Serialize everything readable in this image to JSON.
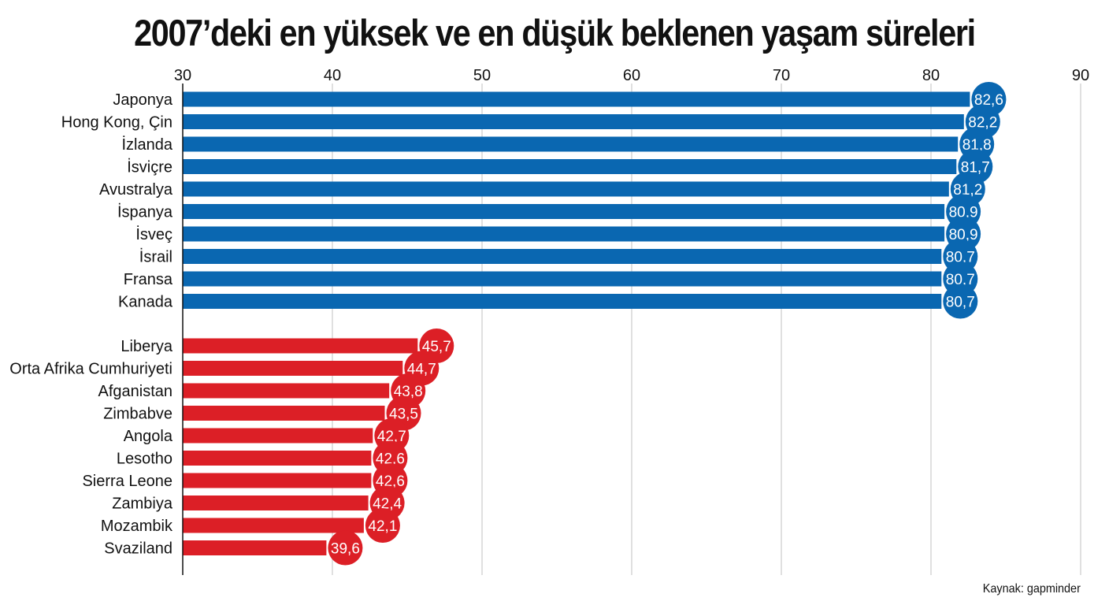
{
  "title": "2007’deki en yüksek ve en düşük beklenen yaşam süreleri",
  "source": "Kaynak: gapminder",
  "colors": {
    "high": "#0a67b1",
    "low": "#dc1f26",
    "grid": "#cccccc",
    "axis": "#111111"
  },
  "chart_data": {
    "type": "bar",
    "orientation": "horizontal",
    "xlim": [
      30,
      90
    ],
    "xticks": [
      "30",
      "40",
      "50",
      "60",
      "70",
      "80",
      "90"
    ],
    "grid": true,
    "groups": [
      {
        "color_key": "high",
        "categories": [
          "Japonya",
          "Hong Kong, Çin",
          "İzlanda",
          "İsviçre",
          "Avustralya",
          "İspanya",
          "İsveç",
          "İsrail",
          "Fransa",
          "Kanada"
        ],
        "values": [
          82.6,
          82.2,
          81.8,
          81.7,
          81.2,
          80.9,
          80.9,
          80.7,
          80.7,
          80.7
        ],
        "labels": [
          "82,6",
          "82,2",
          "81,8",
          "81,7",
          "81,2",
          "80,9",
          "80,9",
          "80,7",
          "80,7",
          "80,7"
        ]
      },
      {
        "color_key": "low",
        "categories": [
          "Liberya",
          "Orta Afrika Cumhuriyeti",
          "Afganistan",
          "Zimbabve",
          "Angola",
          "Lesotho",
          "Sierra Leone",
          "Zambiya",
          "Mozambik",
          "Svaziland"
        ],
        "values": [
          45.7,
          44.7,
          43.8,
          43.5,
          42.7,
          42.6,
          42.6,
          42.4,
          42.1,
          39.6
        ],
        "labels": [
          "45,7",
          "44,7",
          "43,8",
          "43,5",
          "42,7",
          "42,6",
          "42,6",
          "42,4",
          "42,1",
          "39,6"
        ]
      }
    ]
  }
}
